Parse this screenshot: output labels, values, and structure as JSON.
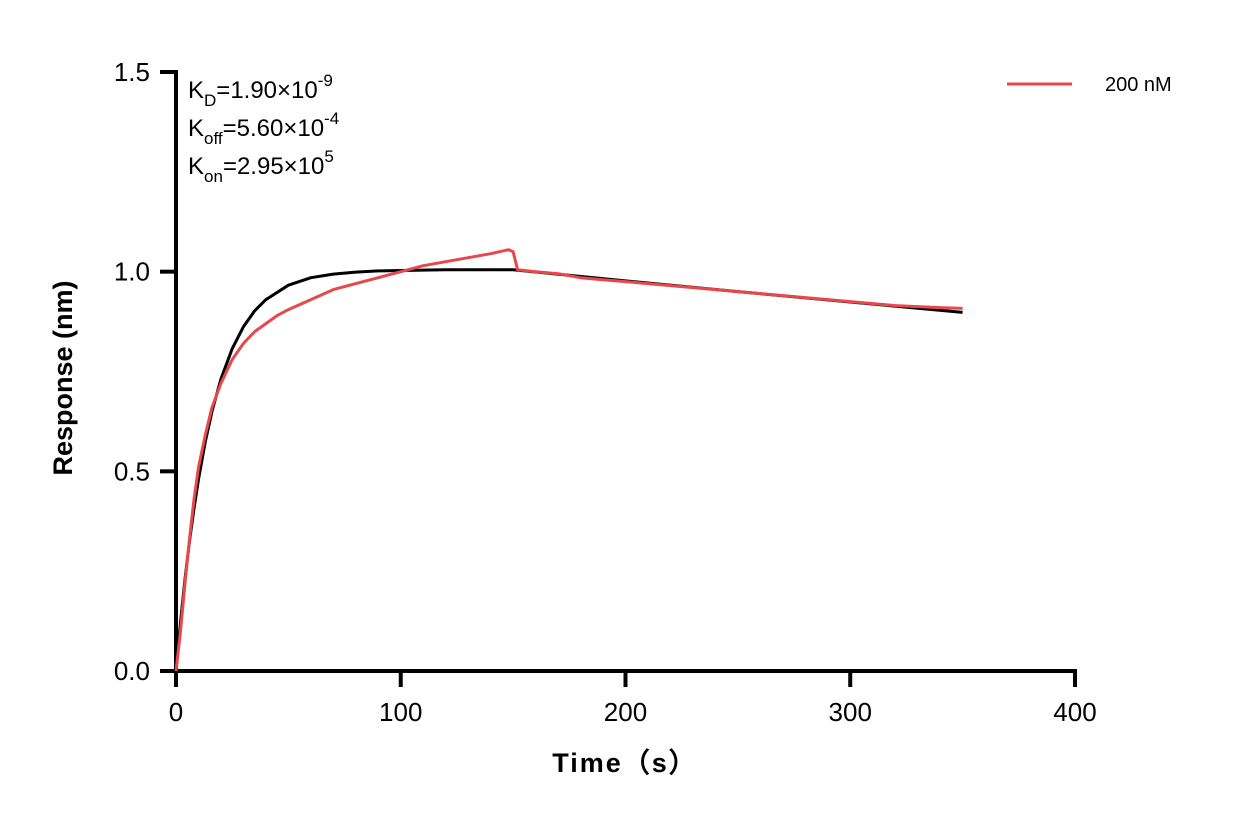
{
  "chart_data": {
    "type": "line",
    "title": "",
    "xlabel": "Time（s）",
    "ylabel": "Response (nm)",
    "xlim": [
      0,
      400
    ],
    "ylim": [
      0,
      1.5
    ],
    "xticks": [
      "0",
      "100",
      "200",
      "300",
      "400"
    ],
    "yticks": [
      "0.0",
      "0.5",
      "1.0",
      "1.5"
    ],
    "grid": false,
    "legend_position": "top-right",
    "annotations": [
      {
        "main": "K",
        "sub": "D",
        "value": "=1.90×10",
        "exp": "-9"
      },
      {
        "main": "K",
        "sub": "off",
        "value": "=5.60×10",
        "exp": "-4"
      },
      {
        "main": "K",
        "sub": "on",
        "value": "=2.95×10",
        "exp": "5"
      }
    ],
    "series": [
      {
        "name": "200 nM",
        "color": "#e8474c",
        "x": [
          0,
          2,
          4,
          6,
          8,
          10,
          13,
          16,
          20,
          25,
          30,
          35,
          40,
          45,
          50,
          60,
          70,
          80,
          90,
          100,
          110,
          120,
          130,
          140,
          148,
          150,
          152,
          160,
          170,
          180,
          190,
          200,
          220,
          240,
          260,
          280,
          300,
          320,
          340,
          350
        ],
        "y": [
          0,
          0.1,
          0.22,
          0.33,
          0.43,
          0.51,
          0.59,
          0.66,
          0.72,
          0.78,
          0.82,
          0.85,
          0.87,
          0.89,
          0.905,
          0.93,
          0.955,
          0.97,
          0.985,
          1.0,
          1.015,
          1.025,
          1.035,
          1.045,
          1.055,
          1.05,
          1.005,
          1.0,
          0.995,
          0.985,
          0.98,
          0.975,
          0.965,
          0.955,
          0.945,
          0.935,
          0.925,
          0.915,
          0.91,
          0.908
        ]
      },
      {
        "color": "#000000",
        "x": [
          0,
          2,
          4,
          6,
          8,
          10,
          13,
          16,
          20,
          25,
          30,
          35,
          40,
          50,
          60,
          70,
          80,
          90,
          100,
          120,
          150,
          200,
          250,
          300,
          350
        ],
        "y": [
          0,
          0.122,
          0.23,
          0.325,
          0.407,
          0.48,
          0.573,
          0.65,
          0.731,
          0.807,
          0.862,
          0.902,
          0.93,
          0.966,
          0.985,
          0.994,
          0.999,
          1.002,
          1.003,
          1.005,
          1.005,
          0.977,
          0.95,
          0.924,
          0.898
        ]
      }
    ]
  }
}
